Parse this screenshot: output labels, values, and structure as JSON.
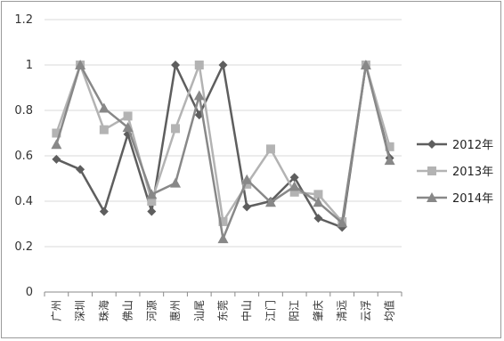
{
  "chart_data": {
    "type": "line",
    "categories": [
      "广州",
      "深圳",
      "珠海",
      "佛山",
      "河源",
      "惠州",
      "汕尾",
      "东莞",
      "中山",
      "江门",
      "阳江",
      "肇庆",
      "清远",
      "云浮",
      "均值"
    ],
    "series": [
      {
        "name": "2012年",
        "marker": "diamond",
        "color": "#5e5e5e",
        "values": [
          0.585,
          0.54,
          0.355,
          0.695,
          0.355,
          1.0,
          0.78,
          1.0,
          0.375,
          0.4,
          0.505,
          0.325,
          0.285,
          1.0,
          0.59
        ]
      },
      {
        "name": "2013年",
        "marker": "square",
        "color": "#b3b3b3",
        "values": [
          0.7,
          1.0,
          0.715,
          0.775,
          0.4,
          0.72,
          1.0,
          0.31,
          0.475,
          0.63,
          0.44,
          0.43,
          0.31,
          1.0,
          0.64
        ]
      },
      {
        "name": "2014年",
        "marker": "triangle",
        "color": "#888888",
        "values": [
          0.65,
          1.0,
          0.81,
          0.725,
          0.43,
          0.48,
          0.865,
          0.235,
          0.495,
          0.395,
          0.465,
          0.395,
          0.305,
          1.0,
          0.58
        ]
      }
    ],
    "ylim": [
      0,
      1.2
    ],
    "yticks": [
      "0",
      "0.2",
      "0.4",
      "0.6",
      "0.8",
      "1",
      "1.2"
    ],
    "ytick_values": [
      0,
      0.2,
      0.4,
      0.6,
      0.8,
      1.0,
      1.2
    ],
    "grid": true,
    "legend": "right"
  }
}
